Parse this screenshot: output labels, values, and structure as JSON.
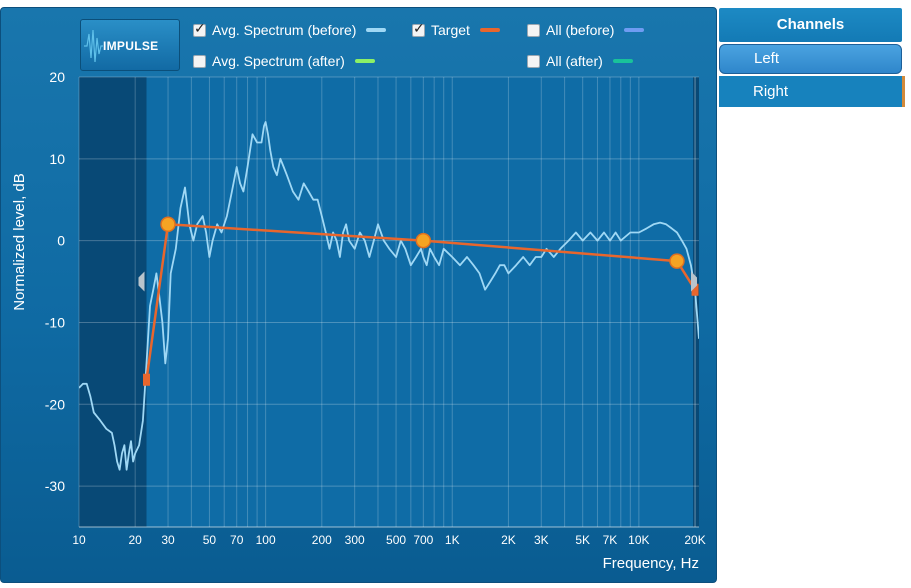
{
  "impulse_button": {
    "label": "IMPULSE",
    "icon": "waveform-icon"
  },
  "legend": [
    {
      "label": "Avg. Spectrum (before)",
      "checked": true,
      "color": "#9fd8f5"
    },
    {
      "label": "Target",
      "checked": true,
      "color": "#e8662d"
    },
    {
      "label": "All (before)",
      "checked": false,
      "color": "#6f9cf2"
    },
    {
      "label": "Avg. Spectrum (after)",
      "checked": false,
      "color": "#8cf066"
    },
    {
      "label": "All (after)",
      "checked": false,
      "color": "#19c29a"
    }
  ],
  "channels": {
    "header": "Channels",
    "items": [
      {
        "label": "Left",
        "selected": true
      },
      {
        "label": "Right",
        "selected": false
      }
    ]
  },
  "chart_data": {
    "type": "line",
    "title": "",
    "xlabel": "Frequency, Hz",
    "ylabel": "Normalized level, dB",
    "xscale": "log",
    "xlim": [
      10,
      21000
    ],
    "ylim": [
      -35,
      20
    ],
    "x_ticks": [
      "10",
      "20",
      "30",
      "50",
      "70",
      "100",
      "200",
      "300",
      "500",
      "700",
      "1K",
      "2K",
      "3K",
      "5K",
      "7K",
      "10K",
      "20K"
    ],
    "y_ticks": [
      "20",
      "10",
      "0",
      "-10",
      "-20",
      "-30"
    ],
    "grid": true,
    "excluded_range_low_hz": [
      10,
      23
    ],
    "series": [
      {
        "name": "Avg. Spectrum (before)",
        "color": "#9fd8f5",
        "points": [
          [
            10,
            -18
          ],
          [
            10.5,
            -17.5
          ],
          [
            11,
            -17.5
          ],
          [
            11.5,
            -19
          ],
          [
            12,
            -21
          ],
          [
            13,
            -22
          ],
          [
            14,
            -23
          ],
          [
            15,
            -23.5
          ],
          [
            15.5,
            -25
          ],
          [
            16,
            -27
          ],
          [
            16.5,
            -28
          ],
          [
            17,
            -26
          ],
          [
            17.5,
            -25
          ],
          [
            18,
            -28
          ],
          [
            18.5,
            -26
          ],
          [
            19,
            -24.5
          ],
          [
            19.5,
            -27
          ],
          [
            20,
            -26
          ],
          [
            21,
            -25
          ],
          [
            22,
            -22
          ],
          [
            23,
            -15
          ],
          [
            24,
            -8
          ],
          [
            25,
            -6
          ],
          [
            26,
            -4
          ],
          [
            27,
            -7
          ],
          [
            28,
            -10
          ],
          [
            29,
            -15
          ],
          [
            30,
            -12
          ],
          [
            31,
            -4
          ],
          [
            33,
            -1
          ],
          [
            35,
            4
          ],
          [
            37,
            6.5
          ],
          [
            39,
            2
          ],
          [
            41,
            0
          ],
          [
            43,
            2
          ],
          [
            46,
            3
          ],
          [
            48,
            1
          ],
          [
            50,
            -2
          ],
          [
            52,
            0
          ],
          [
            55,
            2
          ],
          [
            58,
            1
          ],
          [
            62,
            3
          ],
          [
            66,
            6
          ],
          [
            70,
            9
          ],
          [
            73,
            7
          ],
          [
            76,
            6
          ],
          [
            80,
            9
          ],
          [
            85,
            13
          ],
          [
            90,
            12
          ],
          [
            95,
            12
          ],
          [
            98,
            14
          ],
          [
            100,
            14.5
          ],
          [
            103,
            13
          ],
          [
            106,
            11
          ],
          [
            110,
            9
          ],
          [
            115,
            8
          ],
          [
            120,
            10
          ],
          [
            125,
            9
          ],
          [
            130,
            8
          ],
          [
            140,
            6
          ],
          [
            150,
            5
          ],
          [
            160,
            7
          ],
          [
            170,
            6
          ],
          [
            180,
            5
          ],
          [
            190,
            5
          ],
          [
            200,
            3
          ],
          [
            210,
            1
          ],
          [
            220,
            -1
          ],
          [
            230,
            1
          ],
          [
            240,
            0
          ],
          [
            250,
            -2
          ],
          [
            260,
            1
          ],
          [
            270,
            2
          ],
          [
            280,
            0
          ],
          [
            300,
            -1
          ],
          [
            320,
            1
          ],
          [
            340,
            0
          ],
          [
            360,
            -2
          ],
          [
            380,
            0
          ],
          [
            400,
            2
          ],
          [
            430,
            0
          ],
          [
            460,
            -1
          ],
          [
            500,
            -2
          ],
          [
            530,
            0
          ],
          [
            560,
            -1
          ],
          [
            600,
            -3
          ],
          [
            640,
            -2
          ],
          [
            680,
            -1
          ],
          [
            700,
            -2
          ],
          [
            730,
            -3
          ],
          [
            760,
            -1
          ],
          [
            800,
            -2
          ],
          [
            850,
            -3
          ],
          [
            900,
            -1
          ],
          [
            1000,
            -2
          ],
          [
            1100,
            -3
          ],
          [
            1200,
            -2
          ],
          [
            1300,
            -3
          ],
          [
            1400,
            -4
          ],
          [
            1500,
            -6
          ],
          [
            1600,
            -5
          ],
          [
            1700,
            -4
          ],
          [
            1800,
            -3
          ],
          [
            1900,
            -3
          ],
          [
            2000,
            -4
          ],
          [
            2200,
            -3
          ],
          [
            2400,
            -2
          ],
          [
            2600,
            -3
          ],
          [
            2800,
            -2
          ],
          [
            3000,
            -2
          ],
          [
            3200,
            -1
          ],
          [
            3500,
            -2
          ],
          [
            3800,
            -1
          ],
          [
            4200,
            0
          ],
          [
            4600,
            1
          ],
          [
            5000,
            0
          ],
          [
            5500,
            1
          ],
          [
            6000,
            0
          ],
          [
            6500,
            1
          ],
          [
            7000,
            0
          ],
          [
            7500,
            1
          ],
          [
            8000,
            0
          ],
          [
            9000,
            1
          ],
          [
            10000,
            1
          ],
          [
            11000,
            1.5
          ],
          [
            12000,
            2
          ],
          [
            13000,
            2.2
          ],
          [
            14000,
            2
          ],
          [
            15000,
            1.5
          ],
          [
            16000,
            1
          ],
          [
            17000,
            0
          ],
          [
            18000,
            -1
          ],
          [
            19000,
            -3
          ],
          [
            20000,
            -6
          ],
          [
            21000,
            -12
          ]
        ]
      },
      {
        "name": "Target",
        "color": "#e8662d",
        "points": [
          [
            23,
            -17
          ],
          [
            30,
            2
          ],
          [
            700,
            0
          ],
          [
            16000,
            -2.5
          ],
          [
            20000,
            -6
          ]
        ]
      }
    ]
  }
}
